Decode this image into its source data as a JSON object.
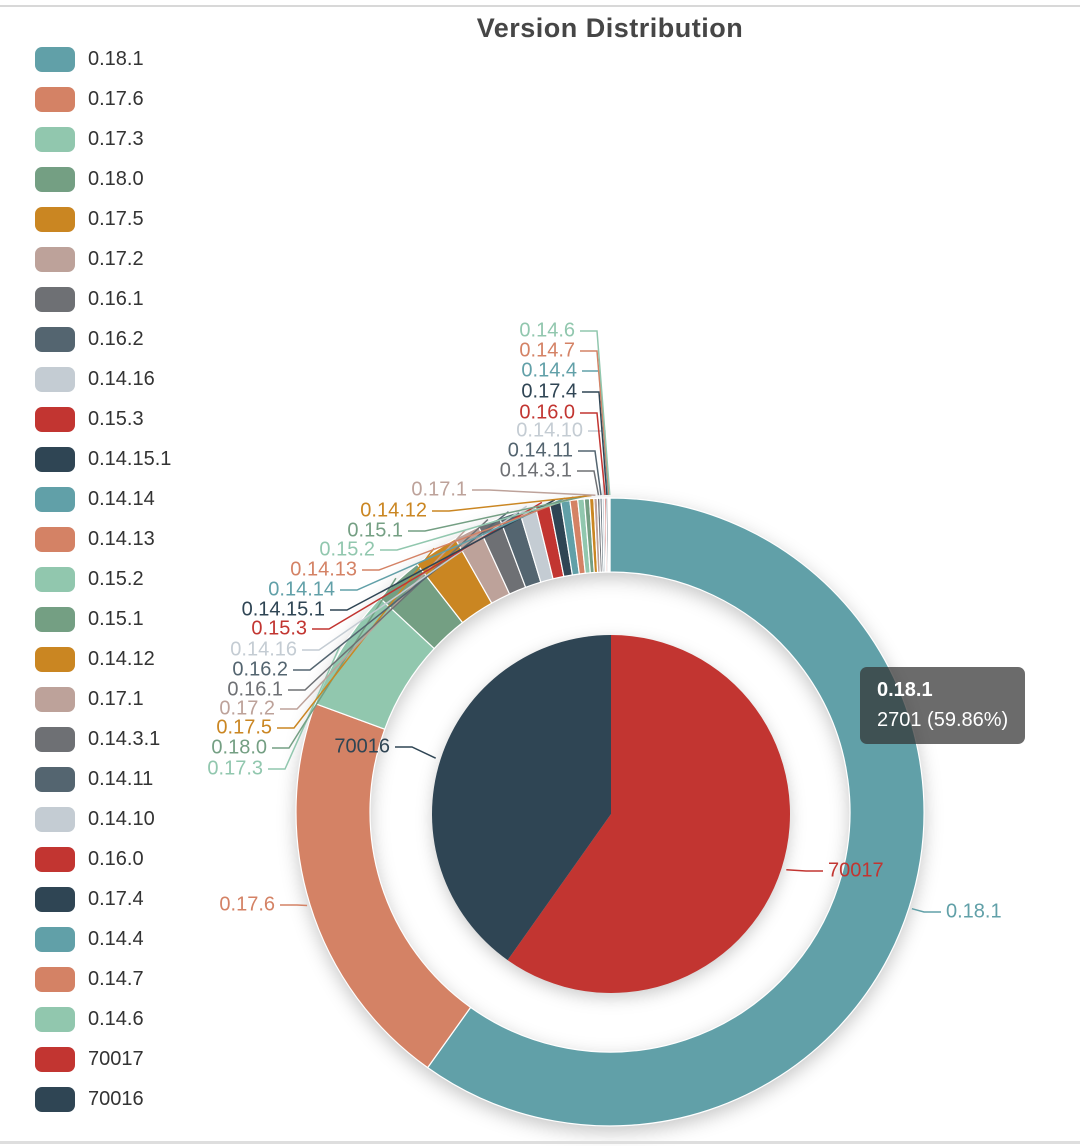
{
  "title": {
    "text": "Version Distribution"
  },
  "tooltip": {
    "name": "0.18.1",
    "value_text": "2701 (59.86%)"
  },
  "chart_data": {
    "type": "pie",
    "title": "Version Distribution",
    "legend_position": "left",
    "grid": false,
    "series": [
      {
        "name": "version-ring",
        "ring": "outer",
        "total_est": 4512,
        "items": [
          {
            "label": "0.18.1",
            "value": 2701,
            "percent": 59.86,
            "color": "#61a0a8",
            "labeled": true
          },
          {
            "label": "0.17.6",
            "value": 936,
            "color": "#d48265"
          },
          {
            "label": "0.17.3",
            "value": 285,
            "color": "#91c7ae"
          },
          {
            "label": "0.18.0",
            "value": 115,
            "color": "#749f83"
          },
          {
            "label": "0.17.5",
            "value": 105,
            "color": "#ca8622"
          },
          {
            "label": "0.17.2",
            "value": 60,
            "color": "#bda29a"
          },
          {
            "label": "0.16.1",
            "value": 52,
            "color": "#6e7074"
          },
          {
            "label": "0.16.2",
            "value": 48,
            "color": "#546570"
          },
          {
            "label": "0.14.16",
            "value": 38,
            "color": "#c4ccd3"
          },
          {
            "label": "0.15.3",
            "value": 33,
            "color": "#c23531"
          },
          {
            "label": "0.14.15.1",
            "value": 26,
            "color": "#2f4554"
          },
          {
            "label": "0.14.14",
            "value": 21,
            "color": "#61a0a8"
          },
          {
            "label": "0.14.13",
            "value": 18,
            "color": "#d48265"
          },
          {
            "label": "0.15.2",
            "value": 15,
            "color": "#91c7ae"
          },
          {
            "label": "0.15.1",
            "value": 12,
            "color": "#749f83"
          },
          {
            "label": "0.14.12",
            "value": 10,
            "color": "#ca8622"
          },
          {
            "label": "0.17.1",
            "value": 8,
            "color": "#bda29a"
          },
          {
            "label": "0.14.3.1",
            "value": 6,
            "color": "#6e7074"
          },
          {
            "label": "0.14.11",
            "value": 5,
            "color": "#546570"
          },
          {
            "label": "0.14.10",
            "value": 5,
            "color": "#c4ccd3"
          },
          {
            "label": "0.16.0",
            "value": 4,
            "color": "#c23531"
          },
          {
            "label": "0.17.4",
            "value": 4,
            "color": "#2f4554"
          },
          {
            "label": "0.14.4",
            "value": 2,
            "color": "#61a0a8"
          },
          {
            "label": "0.14.7",
            "value": 2,
            "color": "#d48265"
          },
          {
            "label": "0.14.6",
            "value": 1,
            "color": "#91c7ae"
          }
        ]
      },
      {
        "name": "build-pie",
        "ring": "inner",
        "items": [
          {
            "label": "70017",
            "percent": 59.8,
            "color": "#c23531"
          },
          {
            "label": "70016",
            "percent": 40.2,
            "color": "#2f4554"
          }
        ]
      }
    ]
  }
}
